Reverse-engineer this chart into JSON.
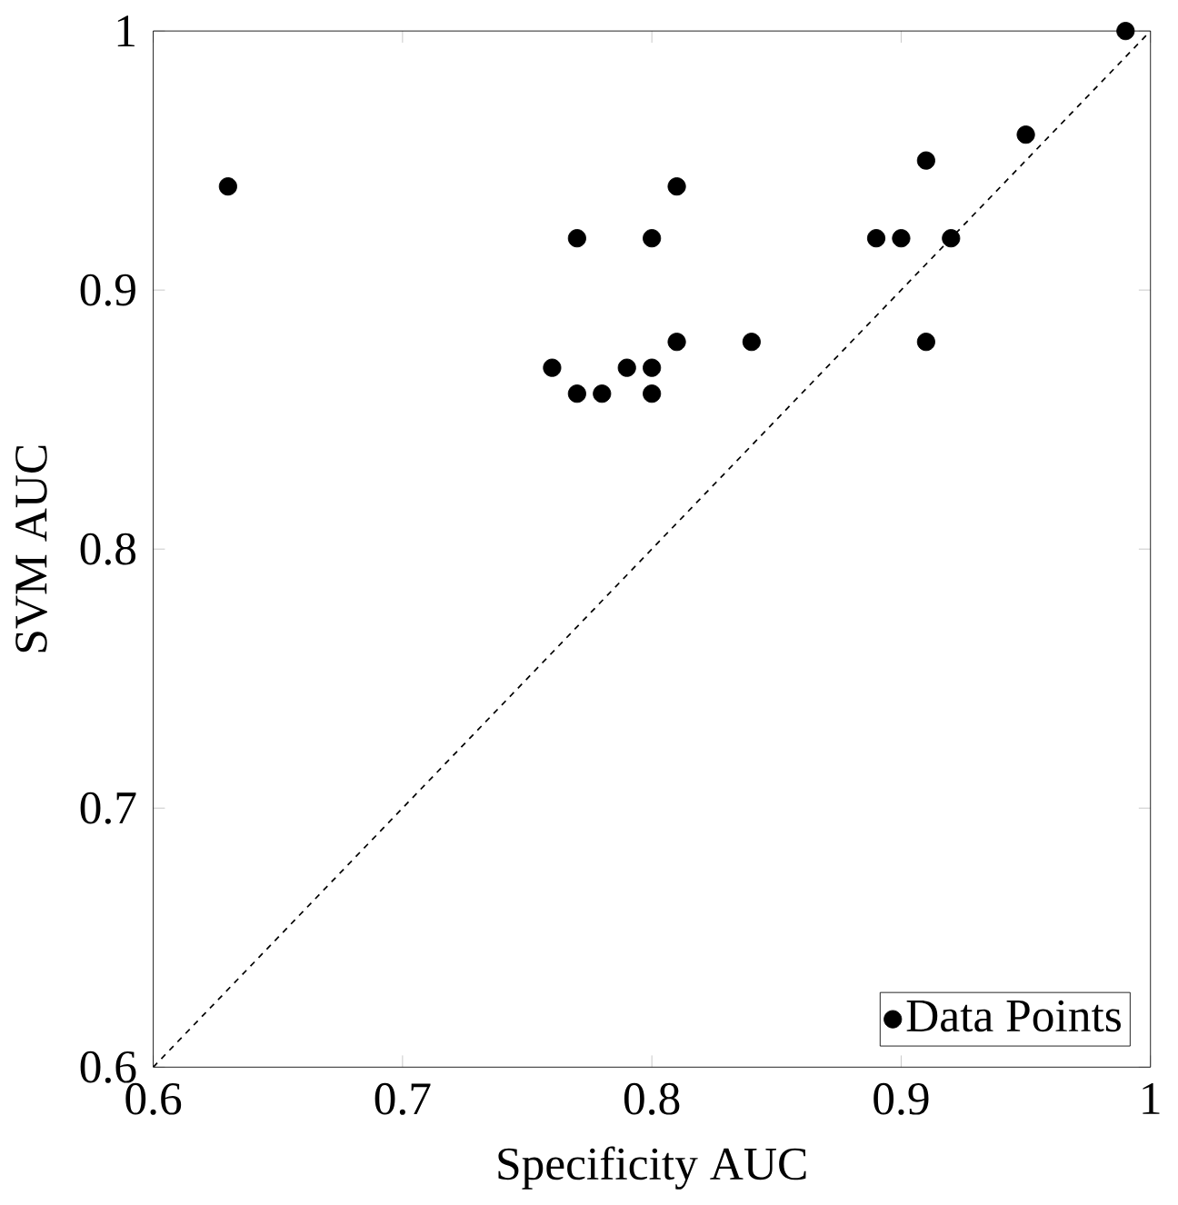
{
  "chart_data": {
    "type": "scatter",
    "xlabel": "Specificity AUC",
    "ylabel": "SVM AUC",
    "xlim": [
      0.6,
      1
    ],
    "ylim": [
      0.6,
      1
    ],
    "xticks": [
      0.6,
      0.7,
      0.8,
      0.9,
      1
    ],
    "yticks": [
      0.6,
      0.7,
      0.8,
      0.9,
      1
    ],
    "legend": "bottom right",
    "series": [
      {
        "name": "Data Points",
        "marker": "circle",
        "color": "#000000",
        "x": [
          0.63,
          0.77,
          0.76,
          0.77,
          0.78,
          0.79,
          0.8,
          0.8,
          0.8,
          0.81,
          0.81,
          0.84,
          0.89,
          0.9,
          0.91,
          0.91,
          0.92,
          0.95,
          0.99
        ],
        "values": [
          0.94,
          0.92,
          0.87,
          0.86,
          0.86,
          0.87,
          0.92,
          0.87,
          0.86,
          0.94,
          0.88,
          0.88,
          0.92,
          0.92,
          0.95,
          0.88,
          0.92,
          0.96,
          1.0
        ]
      },
      {
        "type": "line",
        "marker": "none",
        "color": "#000000",
        "line_style": "dashed",
        "x": [
          0.6,
          1
        ],
        "values": [
          0.6,
          1
        ]
      }
    ]
  }
}
